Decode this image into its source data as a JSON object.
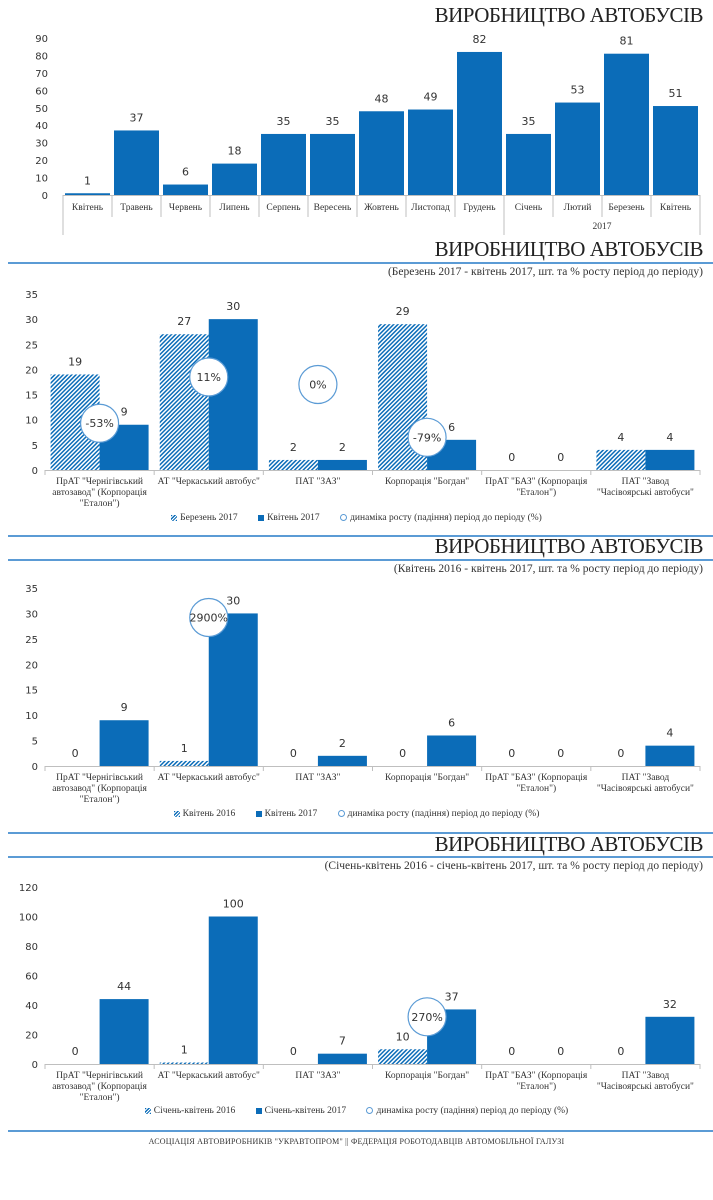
{
  "colors": {
    "bar": "#0b6cb8",
    "accent_line": "#5b9bd5",
    "axis": "#bfbfbf"
  },
  "footer": "АСОЦІАЦІЯ АВТОВИРОБНИКІВ \"УКРАВТОПРОМ\" || ФЕДЕРАЦІЯ РОБОТОДАВЦІВ АВТОМОБІЛЬНОЇ ГАЛУЗІ",
  "chart_data": [
    {
      "type": "bar",
      "title": "ВИРОБНИЦТВО АВТОБУСІВ",
      "subtitle": "",
      "categories": [
        "Квітень",
        "Травень",
        "Червень",
        "Липень",
        "Серпень",
        "Вересень",
        "Жовтень",
        "Листопад",
        "Грудень",
        "Січень",
        "Лютий",
        "Березень",
        "Квітень"
      ],
      "group_labels": [
        {
          "label": "2017",
          "from": 9,
          "to": 12
        }
      ],
      "values": [
        1,
        37,
        6,
        18,
        35,
        35,
        48,
        49,
        82,
        35,
        53,
        81,
        51
      ],
      "yticks": [
        0,
        10,
        20,
        30,
        40,
        50,
        60,
        70,
        80,
        90
      ],
      "ylim": [
        0,
        90
      ],
      "xlabel": "",
      "ylabel": "",
      "grid": false
    },
    {
      "type": "bar",
      "title": "ВИРОБНИЦТВО АВТОБУСІВ",
      "subtitle": "(Березень 2017 - квітень 2017, шт. та % росту період до періоду)",
      "categories": [
        "ПрАТ \"Чернігівський|автозавод\" (Корпорація|\"Еталон\")",
        "АТ \"Черкаський автобус\"",
        "ПАТ \"ЗАЗ\"",
        "Корпорація \"Богдан\"",
        "ПрАТ \"БАЗ\" (Корпорація|\"Еталон\")",
        "ПАТ \"Завод|\"Часівоярські автобуси\""
      ],
      "series": [
        {
          "name": "Березень 2017",
          "style": "hatch",
          "values": [
            19,
            27,
            2,
            29,
            0,
            4
          ]
        },
        {
          "name": "Квітень 2017",
          "style": "solid",
          "values": [
            9,
            30,
            2,
            6,
            0,
            4
          ]
        }
      ],
      "growth": [
        {
          "category": 0,
          "label": "-53%",
          "value": -53
        },
        {
          "category": 1,
          "label": "11%",
          "value": 11
        },
        {
          "category": 2,
          "label": "0%",
          "value": 0
        },
        {
          "category": 3,
          "label": "-79%",
          "value": -79
        }
      ],
      "growth_legend": "динаміка росту (падіння) період до періоду (%)",
      "yticks": [
        0,
        5,
        10,
        15,
        20,
        25,
        30,
        35
      ],
      "ylim": [
        0,
        35
      ],
      "legend": "bottom",
      "grid": false
    },
    {
      "type": "bar",
      "title": "ВИРОБНИЦТВО АВТОБУСІВ",
      "subtitle": "(Квітень 2016 - квітень 2017, шт. та % росту період до періоду)",
      "categories": [
        "ПрАТ \"Чернігівський|автозавод\" (Корпорація|\"Еталон\")",
        "АТ \"Черкаський автобус\"",
        "ПАТ \"ЗАЗ\"",
        "Корпорація \"Богдан\"",
        "ПрАТ \"БАЗ\" (Корпорація|\"Еталон\")",
        "ПАТ \"Завод|\"Часівоярські автобуси\""
      ],
      "series": [
        {
          "name": "Квітень 2016",
          "style": "hatch",
          "values": [
            0,
            1,
            0,
            0,
            0,
            0
          ]
        },
        {
          "name": "Квітень 2017",
          "style": "solid",
          "values": [
            9,
            30,
            2,
            6,
            0,
            4
          ]
        }
      ],
      "growth": [
        {
          "category": 1,
          "label": "2900%",
          "value": 2900
        }
      ],
      "growth_legend": "динаміка росту (падіння) період до періоду (%)",
      "yticks": [
        0,
        5,
        10,
        15,
        20,
        25,
        30,
        35
      ],
      "ylim": [
        0,
        35
      ],
      "legend": "bottom",
      "grid": false
    },
    {
      "type": "bar",
      "title": "ВИРОБНИЦТВО АВТОБУСІВ",
      "subtitle": "(Січень-квітень 2016 - січень-квітень 2017, шт. та % росту період до періоду)",
      "categories": [
        "ПрАТ \"Чернігівський|автозавод\" (Корпорація|\"Еталон\")",
        "АТ \"Черкаський автобус\"",
        "ПАТ \"ЗАЗ\"",
        "Корпорація \"Богдан\"",
        "ПрАТ \"БАЗ\" (Корпорація|\"Еталон\")",
        "ПАТ \"Завод|\"Часівоярські автобуси\""
      ],
      "series": [
        {
          "name": "Січень-квітень 2016",
          "style": "hatch",
          "values": [
            0,
            1,
            0,
            10,
            0,
            0
          ]
        },
        {
          "name": "Січень-квітень 2017",
          "style": "solid",
          "values": [
            44,
            100,
            7,
            37,
            0,
            32
          ]
        }
      ],
      "growth": [
        {
          "category": 3,
          "label": "270%",
          "value": 270
        }
      ],
      "growth_legend": "динаміка росту (падіння) період до періоду (%)",
      "yticks": [
        0,
        20,
        40,
        60,
        80,
        100,
        120
      ],
      "ylim": [
        0,
        120
      ],
      "legend": "bottom",
      "grid": false
    }
  ]
}
